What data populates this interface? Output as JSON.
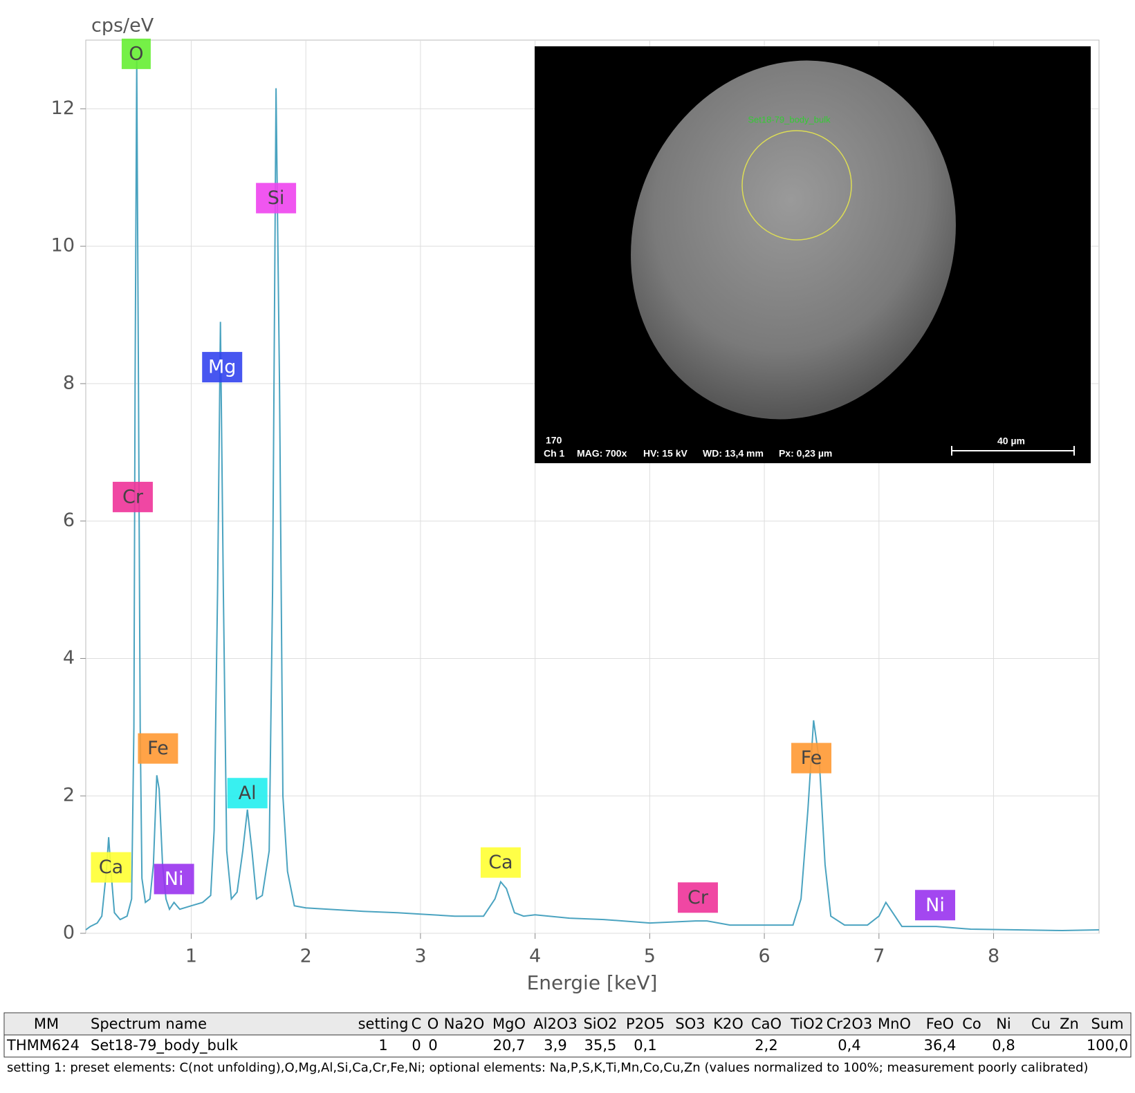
{
  "chart_data": {
    "type": "line",
    "y_axis_label": "cps/eV",
    "x_axis_label": "Energie [keV]",
    "x": [
      0.08,
      0.12,
      0.18,
      0.22,
      0.26,
      0.28,
      0.3,
      0.33,
      0.38,
      0.44,
      0.48,
      0.5,
      0.51,
      0.525,
      0.54,
      0.555,
      0.57,
      0.6,
      0.64,
      0.67,
      0.7,
      0.72,
      0.75,
      0.78,
      0.81,
      0.85,
      0.9,
      1.0,
      1.1,
      1.17,
      1.2,
      1.23,
      1.255,
      1.28,
      1.31,
      1.35,
      1.4,
      1.45,
      1.49,
      1.53,
      1.57,
      1.62,
      1.68,
      1.71,
      1.74,
      1.77,
      1.8,
      1.84,
      1.9,
      2.0,
      2.2,
      2.5,
      2.8,
      3.0,
      3.3,
      3.55,
      3.65,
      3.7,
      3.75,
      3.82,
      3.9,
      4.0,
      4.3,
      4.6,
      5.0,
      5.4,
      5.5,
      5.7,
      6.0,
      6.25,
      6.32,
      6.38,
      6.43,
      6.48,
      6.53,
      6.58,
      6.7,
      6.9,
      7.0,
      7.06,
      7.1,
      7.2,
      7.5,
      7.8,
      8.2,
      8.6,
      8.92
    ],
    "values": [
      0.05,
      0.1,
      0.15,
      0.25,
      0.9,
      1.4,
      0.9,
      0.3,
      0.2,
      0.25,
      0.5,
      3,
      8,
      12.7,
      8,
      3,
      0.8,
      0.45,
      0.5,
      1.0,
      2.3,
      2.1,
      1.0,
      0.5,
      0.35,
      0.45,
      0.35,
      0.4,
      0.45,
      0.55,
      1.5,
      5,
      8.9,
      5,
      1.2,
      0.5,
      0.6,
      1.2,
      1.8,
      1.2,
      0.5,
      0.55,
      1.2,
      5,
      12.3,
      8,
      2,
      0.9,
      0.4,
      0.37,
      0.35,
      0.32,
      0.3,
      0.28,
      0.25,
      0.25,
      0.5,
      0.75,
      0.65,
      0.3,
      0.25,
      0.27,
      0.22,
      0.2,
      0.15,
      0.18,
      0.18,
      0.12,
      0.12,
      0.12,
      0.5,
      1.8,
      3.1,
      2.5,
      1.0,
      0.25,
      0.12,
      0.12,
      0.25,
      0.45,
      0.35,
      0.1,
      0.1,
      0.06,
      0.05,
      0.04,
      0.05
    ],
    "color": "#4aa3c0",
    "xlim": [
      0.08,
      8.92
    ],
    "ylim": [
      0,
      13
    ],
    "xticks": [
      1,
      2,
      3,
      4,
      5,
      6,
      7,
      8
    ],
    "yticks": [
      0,
      2,
      4,
      6,
      8,
      10,
      12
    ],
    "grid": true,
    "annotations": [
      {
        "text": "O",
        "x": 0.52,
        "y": 12.8,
        "color": "#66ee33"
      },
      {
        "text": "Si",
        "x": 1.74,
        "y": 10.7,
        "color": "#ee44ee"
      },
      {
        "text": "Mg",
        "x": 1.27,
        "y": 8.24,
        "color": "#3344ee"
      },
      {
        "text": "Cr",
        "x": 0.49,
        "y": 6.35,
        "color": "#ee3399"
      },
      {
        "text": "Fe",
        "x": 0.71,
        "y": 2.69,
        "color": "#ff9933"
      },
      {
        "text": "Al",
        "x": 1.49,
        "y": 2.04,
        "color": "#22eeee"
      },
      {
        "text": "Ca",
        "x": 0.3,
        "y": 0.96,
        "color": "#ffff33"
      },
      {
        "text": "Ni",
        "x": 0.85,
        "y": 0.79,
        "color": "#9933ee"
      },
      {
        "text": "Ca",
        "x": 3.7,
        "y": 1.03,
        "color": "#ffff33"
      },
      {
        "text": "Cr",
        "x": 5.42,
        "y": 0.52,
        "color": "#ee3399"
      },
      {
        "text": "Fe",
        "x": 6.41,
        "y": 2.55,
        "color": "#ff9933"
      },
      {
        "text": "Ni",
        "x": 7.49,
        "y": 0.41,
        "color": "#9933ee"
      }
    ]
  },
  "inset": {
    "spot_label": "Set18-79_body_bulk",
    "id": "170",
    "channel": "Ch 1",
    "mag": "MAG: 700x",
    "hv": "HV: 15 kV",
    "wd": "WD: 13,4 mm",
    "px": "Px: 0,23 µm",
    "scale": "40 µm"
  },
  "table": {
    "header": [
      "MM",
      "Spectrum name",
      "setting",
      "C",
      "O",
      "Na2O",
      "MgO",
      "Al2O3",
      "SiO2",
      "P2O5",
      "SO3",
      "K2O",
      "CaO",
      "TiO2",
      "Cr2O3",
      "MnO",
      "FeO",
      "Co",
      "Ni",
      "Cu",
      "Zn",
      "Sum"
    ],
    "rows": [
      [
        "THMM624",
        "Set18-79_body_bulk",
        "1",
        "0",
        "0",
        null,
        "20,7",
        "3,9",
        "35,5",
        "0,1",
        null,
        null,
        "2,2",
        null,
        "0,4",
        null,
        "36,4",
        null,
        "0,8",
        null,
        null,
        "100,0"
      ]
    ]
  },
  "footnote": "setting 1: preset elements: C(not unfolding),O,Mg,Al,Si,Ca,Cr,Fe,Ni; optional elements: Na,P,S,K,Ti,Mn,Co,Cu,Zn (values normalized to 100%; measurement poorly calibrated)"
}
